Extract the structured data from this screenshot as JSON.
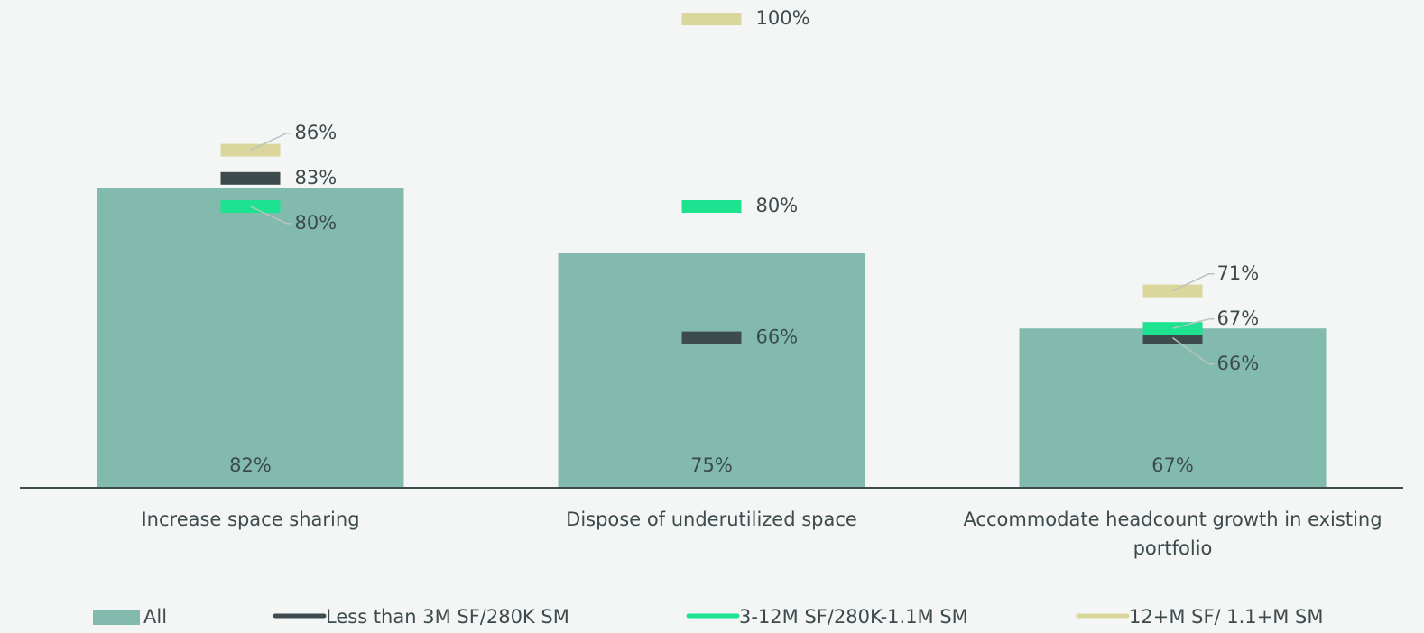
{
  "chart_data": {
    "type": "bar",
    "categories": [
      "Increase space sharing",
      "Dispose of underutilized space",
      "Accommodate headcount growth in existing portfolio"
    ],
    "ylim": [
      50,
      100
    ],
    "series": [
      {
        "name": "All",
        "type": "bar",
        "color": "#82bbad",
        "values": [
          82,
          75,
          67
        ],
        "value_labels": [
          "82%",
          "75%",
          "67%"
        ]
      },
      {
        "name": "Less than 3M SF/280K SM",
        "type": "marker",
        "color": "#3d4b4d",
        "values": [
          83,
          66,
          66
        ],
        "value_labels": [
          "83%",
          "66%",
          "66%"
        ]
      },
      {
        "name": "3-12M SF/280K-1.1M SM",
        "type": "marker",
        "color": "#1de28f",
        "values": [
          80,
          80,
          67
        ],
        "value_labels": [
          "80%",
          "80%",
          "67%"
        ]
      },
      {
        "name": "12+M SF/ 1.1+M SM",
        "type": "marker",
        "color": "#d9d79c",
        "values": [
          86,
          100,
          71
        ],
        "value_labels": [
          "86%",
          "100%",
          "71%"
        ]
      }
    ]
  }
}
